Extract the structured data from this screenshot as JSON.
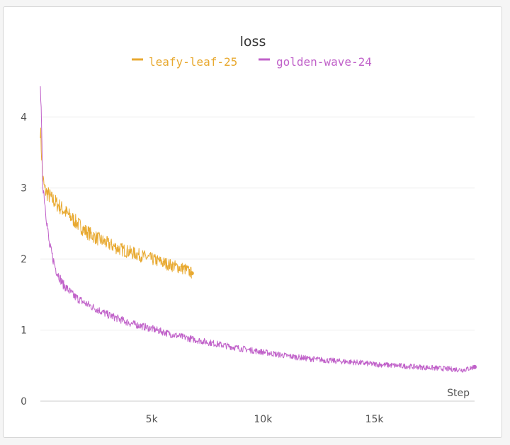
{
  "chart_data": {
    "type": "line",
    "title": "loss",
    "xlabel": "Step",
    "ylabel": "",
    "xlim": [
      0,
      19500
    ],
    "ylim": [
      0,
      4.6
    ],
    "x_ticks": [
      5000,
      10000,
      15000
    ],
    "x_tick_labels": [
      "5k",
      "10k",
      "15k"
    ],
    "y_ticks": [
      0,
      1,
      2,
      3,
      4
    ],
    "y_tick_labels": [
      "0",
      "1",
      "2",
      "3",
      "4"
    ],
    "grid": true,
    "legend": "top-center",
    "series": [
      {
        "name": "leafy-leaf-25",
        "color": "#E8A930",
        "x": [
          0,
          100,
          200,
          500,
          1000,
          1500,
          2000,
          2500,
          3000,
          3500,
          4000,
          4500,
          5000,
          5500,
          6000,
          6500,
          6800
        ],
        "y": [
          3.85,
          3.15,
          2.97,
          2.85,
          2.7,
          2.55,
          2.4,
          2.3,
          2.22,
          2.15,
          2.1,
          2.05,
          2.0,
          1.95,
          1.9,
          1.86,
          1.8
        ]
      },
      {
        "name": "golden-wave-24",
        "color": "#C061C9",
        "x": [
          0,
          100,
          200,
          400,
          700,
          1000,
          1500,
          2000,
          3000,
          4000,
          5000,
          6000,
          7000,
          8000,
          9000,
          10000,
          11000,
          12000,
          13000,
          14000,
          15000,
          16000,
          17000,
          18000,
          19000,
          19500
        ],
        "y": [
          4.55,
          3.1,
          2.8,
          2.2,
          1.85,
          1.65,
          1.48,
          1.38,
          1.22,
          1.1,
          1.02,
          0.93,
          0.86,
          0.8,
          0.74,
          0.69,
          0.64,
          0.6,
          0.57,
          0.55,
          0.52,
          0.5,
          0.48,
          0.46,
          0.44,
          0.48
        ]
      }
    ]
  }
}
